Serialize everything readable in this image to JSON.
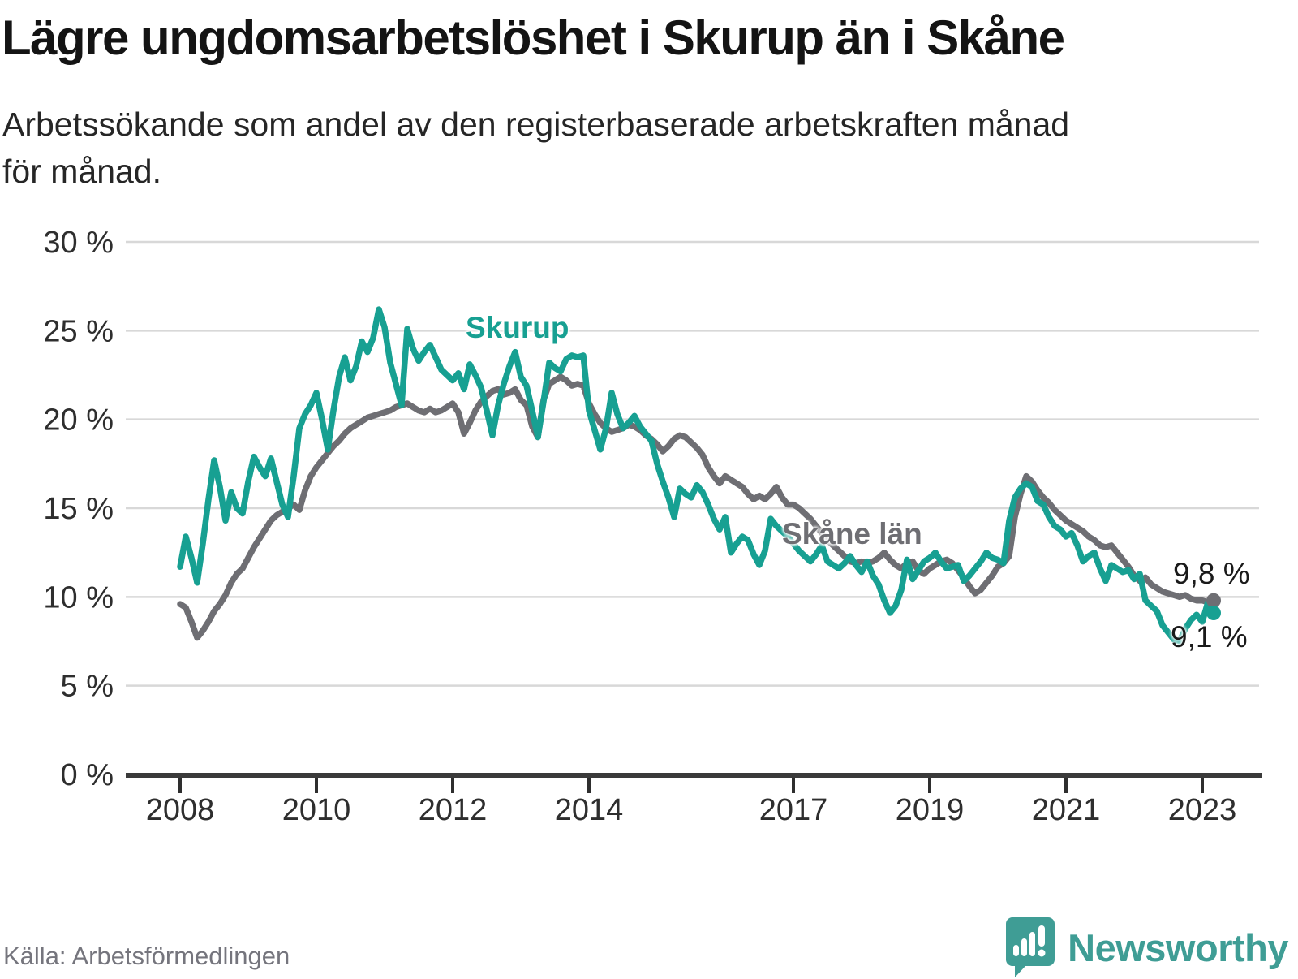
{
  "title": "Lägre ungdomsarbetslöshet i Skurup än i Skåne",
  "subtitle_line1": "Arbetssökande som andel av den registerbaserade arbetskraften månad",
  "subtitle_line2": "för månad.",
  "footer": {
    "source": "Källa: Arbetsförmedlingen",
    "brand": "Newsworthy"
  },
  "colors": {
    "skurup": "#17a092",
    "skane": "#6e6e73",
    "grid": "#d8d8d8",
    "axis": "#3a3a3a",
    "tick_text": "#2e2e2e",
    "title": "#141414",
    "value_label": "#1a1a1a",
    "source_text": "#75757d",
    "brand_teal": "#3f9d95"
  },
  "chart_data": {
    "type": "line",
    "title": "Lägre ungdomsarbetslöshet i Skurup än i Skåne",
    "subtitle": "Arbetssökande som andel av den registerbaserade arbetskraften månad för månad.",
    "xlabel": "",
    "ylabel": "",
    "grid": "horizontal",
    "legend_position": "inline-annotations",
    "x_axis": {
      "start_year": 2008,
      "start_month": 1,
      "frequency": "monthly",
      "tick_years": [
        2008,
        2010,
        2012,
        2014,
        2017,
        2019,
        2021,
        2023
      ],
      "tick_labels": [
        "2008",
        "2010",
        "2012",
        "2014",
        "2017",
        "2019",
        "2021",
        "2023"
      ]
    },
    "y_axis": {
      "range": [
        0,
        30
      ],
      "ticks": [
        0,
        5,
        10,
        15,
        20,
        25,
        30
      ],
      "tick_labels": [
        "0 %",
        "5 %",
        "10 %",
        "15 %",
        "20 %",
        "25 %",
        "30 %"
      ]
    },
    "series": [
      {
        "name": "Skåne län",
        "annotation": "Skåne län",
        "end_label": "9,8 %",
        "color_key": "skane",
        "values": [
          9.6,
          9.4,
          8.6,
          7.7,
          8.1,
          8.6,
          9.2,
          9.6,
          10.1,
          10.8,
          11.3,
          11.6,
          12.2,
          12.8,
          13.3,
          13.8,
          14.3,
          14.6,
          14.8,
          15.0,
          15.2,
          14.9,
          16.0,
          16.8,
          17.3,
          17.7,
          18.1,
          18.5,
          18.8,
          19.2,
          19.5,
          19.7,
          19.9,
          20.1,
          20.2,
          20.3,
          20.4,
          20.5,
          20.7,
          20.8,
          20.9,
          20.7,
          20.5,
          20.4,
          20.6,
          20.4,
          20.5,
          20.7,
          20.9,
          20.4,
          19.2,
          19.8,
          20.5,
          21.0,
          21.3,
          21.6,
          21.7,
          21.4,
          21.5,
          21.7,
          21.1,
          20.8,
          19.6,
          19.0,
          21.1,
          22.0,
          22.2,
          22.4,
          22.2,
          21.9,
          22.0,
          21.9,
          20.9,
          20.3,
          19.8,
          19.5,
          19.3,
          19.4,
          19.5,
          19.7,
          19.6,
          19.4,
          19.1,
          18.9,
          18.6,
          18.2,
          18.5,
          18.9,
          19.1,
          19.0,
          18.7,
          18.4,
          18.0,
          17.3,
          16.8,
          16.4,
          16.8,
          16.6,
          16.4,
          16.2,
          15.8,
          15.5,
          15.7,
          15.5,
          15.8,
          16.2,
          15.6,
          15.2,
          15.2,
          15.0,
          14.7,
          14.4,
          14.0,
          13.6,
          13.2,
          12.9,
          12.6,
          12.3,
          12.0,
          11.9,
          12.0,
          11.9,
          12.0,
          12.2,
          12.5,
          12.1,
          11.8,
          11.6,
          11.9,
          12.0,
          11.5,
          11.3,
          11.6,
          11.8,
          12.0,
          12.1,
          11.9,
          11.5,
          11.1,
          10.6,
          10.2,
          10.4,
          10.8,
          11.2,
          11.7,
          11.9,
          12.3,
          14.5,
          15.8,
          16.8,
          16.5,
          16.0,
          15.6,
          15.3,
          14.9,
          14.6,
          14.3,
          14.1,
          13.9,
          13.7,
          13.4,
          13.2,
          12.9,
          12.8,
          12.9,
          12.5,
          12.1,
          11.7,
          11.2,
          10.9,
          11.1,
          10.7,
          10.5,
          10.3,
          10.2,
          10.1,
          10.0,
          10.1,
          9.9,
          9.8,
          9.8,
          9.7,
          9.8
        ]
      },
      {
        "name": "Skurup",
        "annotation": "Skurup",
        "end_label": "9,1 %",
        "color_key": "skurup",
        "values": [
          11.7,
          13.4,
          12.2,
          10.8,
          13.0,
          15.5,
          17.7,
          16.2,
          14.3,
          15.9,
          15.0,
          14.7,
          16.5,
          17.9,
          17.3,
          16.8,
          17.8,
          16.5,
          15.2,
          14.5,
          16.8,
          19.5,
          20.3,
          20.8,
          21.5,
          20.0,
          18.3,
          20.5,
          22.4,
          23.5,
          22.2,
          23.0,
          24.4,
          23.8,
          24.6,
          26.2,
          25.2,
          23.2,
          22.0,
          20.8,
          25.1,
          24.0,
          23.3,
          23.8,
          24.2,
          23.5,
          22.8,
          22.5,
          22.2,
          22.6,
          21.7,
          23.1,
          22.5,
          21.8,
          20.5,
          19.1,
          20.8,
          22.0,
          23.0,
          23.8,
          22.4,
          21.9,
          20.5,
          19.0,
          21.0,
          23.2,
          22.9,
          22.7,
          23.4,
          23.6,
          23.5,
          23.6,
          20.5,
          19.4,
          18.3,
          19.5,
          21.5,
          20.3,
          19.5,
          19.8,
          20.2,
          19.6,
          19.2,
          18.8,
          17.5,
          16.5,
          15.6,
          14.5,
          16.1,
          15.8,
          15.6,
          16.3,
          15.9,
          15.2,
          14.4,
          13.8,
          14.5,
          12.5,
          13.0,
          13.4,
          13.2,
          12.4,
          11.8,
          12.6,
          14.4,
          14.0,
          13.7,
          13.4,
          13.0,
          12.6,
          12.3,
          12.0,
          12.4,
          12.9,
          12.0,
          11.8,
          11.6,
          11.9,
          12.3,
          11.8,
          11.4,
          12.0,
          11.2,
          10.7,
          9.8,
          9.1,
          9.5,
          10.4,
          12.1,
          11.0,
          11.5,
          12.0,
          12.2,
          12.5,
          12.0,
          11.6,
          11.7,
          11.8,
          10.9,
          11.2,
          11.6,
          12.0,
          12.5,
          12.2,
          12.1,
          11.9,
          14.3,
          15.6,
          16.1,
          16.4,
          16.2,
          15.4,
          15.2,
          14.5,
          14.0,
          13.8,
          13.4,
          13.6,
          12.9,
          12.0,
          12.3,
          12.5,
          11.6,
          10.9,
          11.8,
          11.6,
          11.4,
          11.5,
          11.0,
          11.3,
          9.8,
          9.5,
          9.2,
          8.4,
          8.0,
          7.6,
          7.5,
          8.2,
          8.7,
          9.0,
          8.6,
          9.7,
          9.1
        ]
      }
    ]
  }
}
